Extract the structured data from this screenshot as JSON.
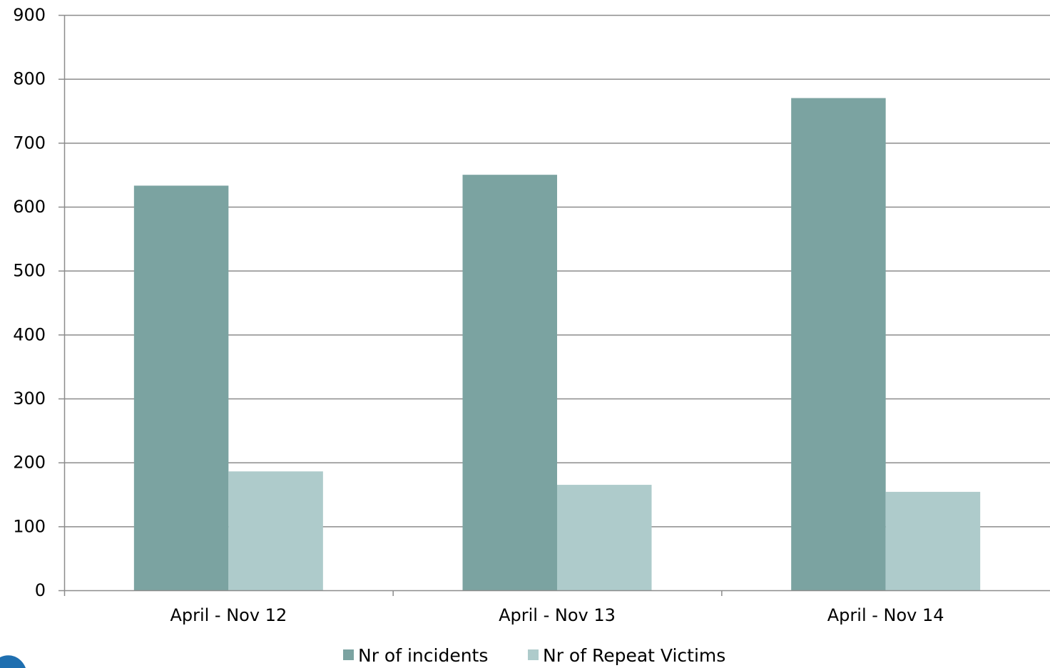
{
  "chart_data": {
    "type": "bar",
    "categories": [
      "April - Nov 12",
      "April - Nov 13",
      "April - Nov 14"
    ],
    "series": [
      {
        "name": "Nr of incidents",
        "values": [
          633,
          650,
          770
        ],
        "color": "#7ba3a1"
      },
      {
        "name": "Nr of Repeat Victims",
        "values": [
          186,
          165,
          154
        ],
        "color": "#aecbcb"
      }
    ],
    "ylim": [
      0,
      900
    ],
    "yticks": [
      0,
      100,
      200,
      300,
      400,
      500,
      600,
      700,
      800,
      900
    ],
    "grid": true,
    "legend_position": "bottom"
  },
  "colors": {
    "gridline": "#8c8c8c",
    "axis": "#8c8c8c",
    "logo": "#1f6fb0"
  }
}
